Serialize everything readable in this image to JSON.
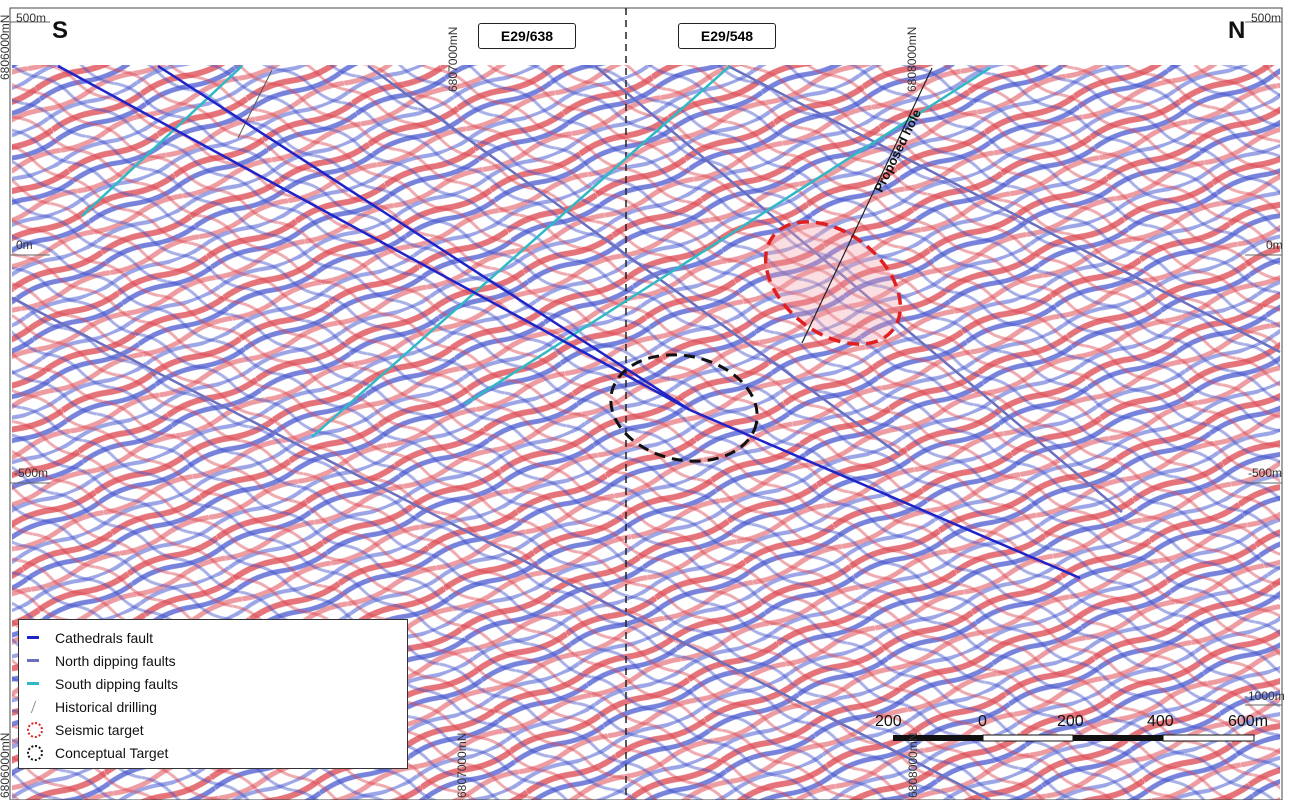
{
  "header": {
    "south_label": "S",
    "north_label": "N",
    "tenement_left": "E29/638",
    "tenement_right": "E29/548",
    "northing_top_left": "6807000mN",
    "northing_top_right": "6808000mN",
    "northing_bottom_left": "6807000mN",
    "northing_bottom_right": "6808000mN",
    "northing_top_edge": "6806000mN",
    "northing_bottom_edge": "6806000mN"
  },
  "depth_labels": {
    "top_left": "500m",
    "top_right": "500m",
    "zero_left": "0m",
    "zero_right": "0m",
    "minus500_left": "-500m",
    "minus500_right": "-500m",
    "minus1000_right": "-1000m"
  },
  "annotations": {
    "proposed_hole": "Proposed hole"
  },
  "legend": {
    "items": [
      {
        "label": "Cathedrals fault",
        "color": "#1f24c9",
        "symbol": "line"
      },
      {
        "label": "North dipping faults",
        "color": "#6a6fc0",
        "symbol": "line"
      },
      {
        "label": "South dipping faults",
        "color": "#2fb9c4",
        "symbol": "line"
      },
      {
        "label": "Historical drilling",
        "color": "#888888",
        "symbol": "drill"
      },
      {
        "label": "Seismic target",
        "color": "#e02020",
        "symbol": "ellipse"
      },
      {
        "label": "Conceptual Target",
        "color": "#111111",
        "symbol": "ellipse"
      }
    ]
  },
  "scale_bar": {
    "labels": [
      "200",
      "0",
      "200",
      "400",
      "600m"
    ]
  },
  "colors": {
    "seismic_red": "#e8525a",
    "seismic_blue": "#4656d0",
    "cathedrals_fault": "#1f24c9",
    "north_dipping": "#6a6fc0",
    "south_dipping": "#2fb9c4"
  }
}
